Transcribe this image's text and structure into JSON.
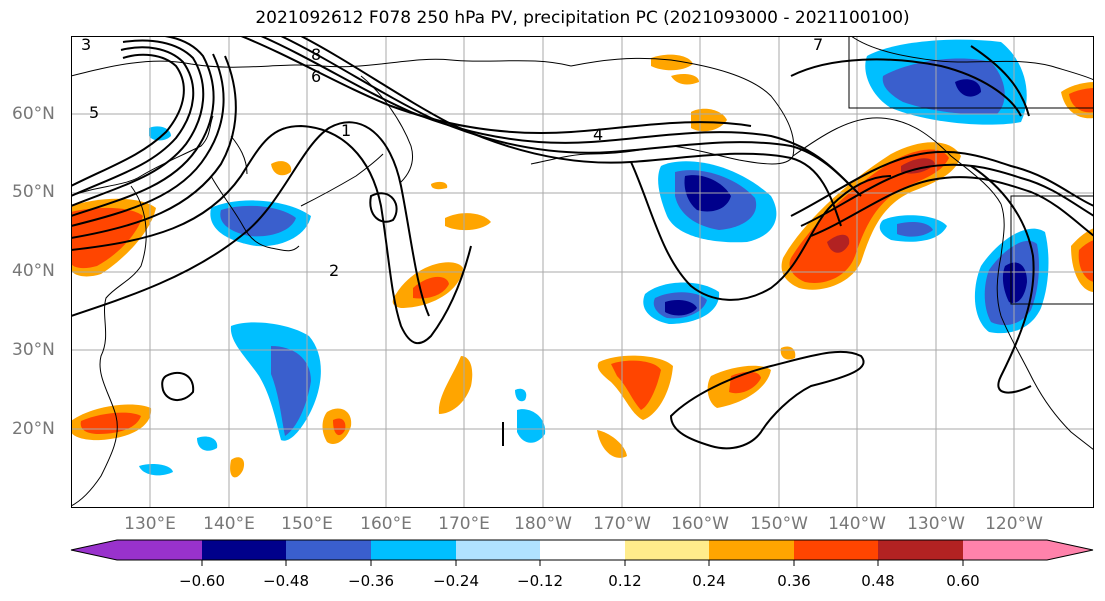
{
  "title": "2021092612 F078 250 hPa PV, precipitation PC (2021093000 - 2021100100)",
  "lat_labels": [
    "60°N",
    "50°N",
    "40°N",
    "30°N",
    "20°N"
  ],
  "lon_labels": [
    "130°E",
    "140°E",
    "150°E",
    "160°E",
    "170°E",
    "180°W",
    "170°W",
    "160°W",
    "150°W",
    "140°W",
    "130°W",
    "120°W"
  ],
  "map_extent": {
    "lon_min": 120,
    "lon_max": 250,
    "lat_min": 10,
    "lat_max": 70
  },
  "gridlines": true,
  "contour_labels": [
    "8",
    "7",
    "6",
    "5",
    "4",
    "3",
    "2",
    "1"
  ],
  "colorbar": {
    "ticks": [
      "−0.60",
      "−0.48",
      "−0.36",
      "−0.24",
      "−0.12",
      "0.12",
      "0.24",
      "0.36",
      "0.48",
      "0.60"
    ],
    "colors": [
      "#9932cc",
      "#00008b",
      "#3a5fcd",
      "#00bfff",
      "#b0e2ff",
      "#ffffff",
      "#ffec8b",
      "#ffa500",
      "#ff4500",
      "#b22222",
      "#ff82ab"
    ],
    "extend": "both"
  },
  "colors": {
    "positive_strong": "#b22222",
    "positive_mid": "#ff4500",
    "positive_low": "#ffa500",
    "positive_weak": "#ffec8b",
    "negative_strong": "#00008b",
    "negative_mid": "#3a5fcd",
    "negative_low": "#00bfff",
    "negative_weak": "#b0e2ff"
  }
}
